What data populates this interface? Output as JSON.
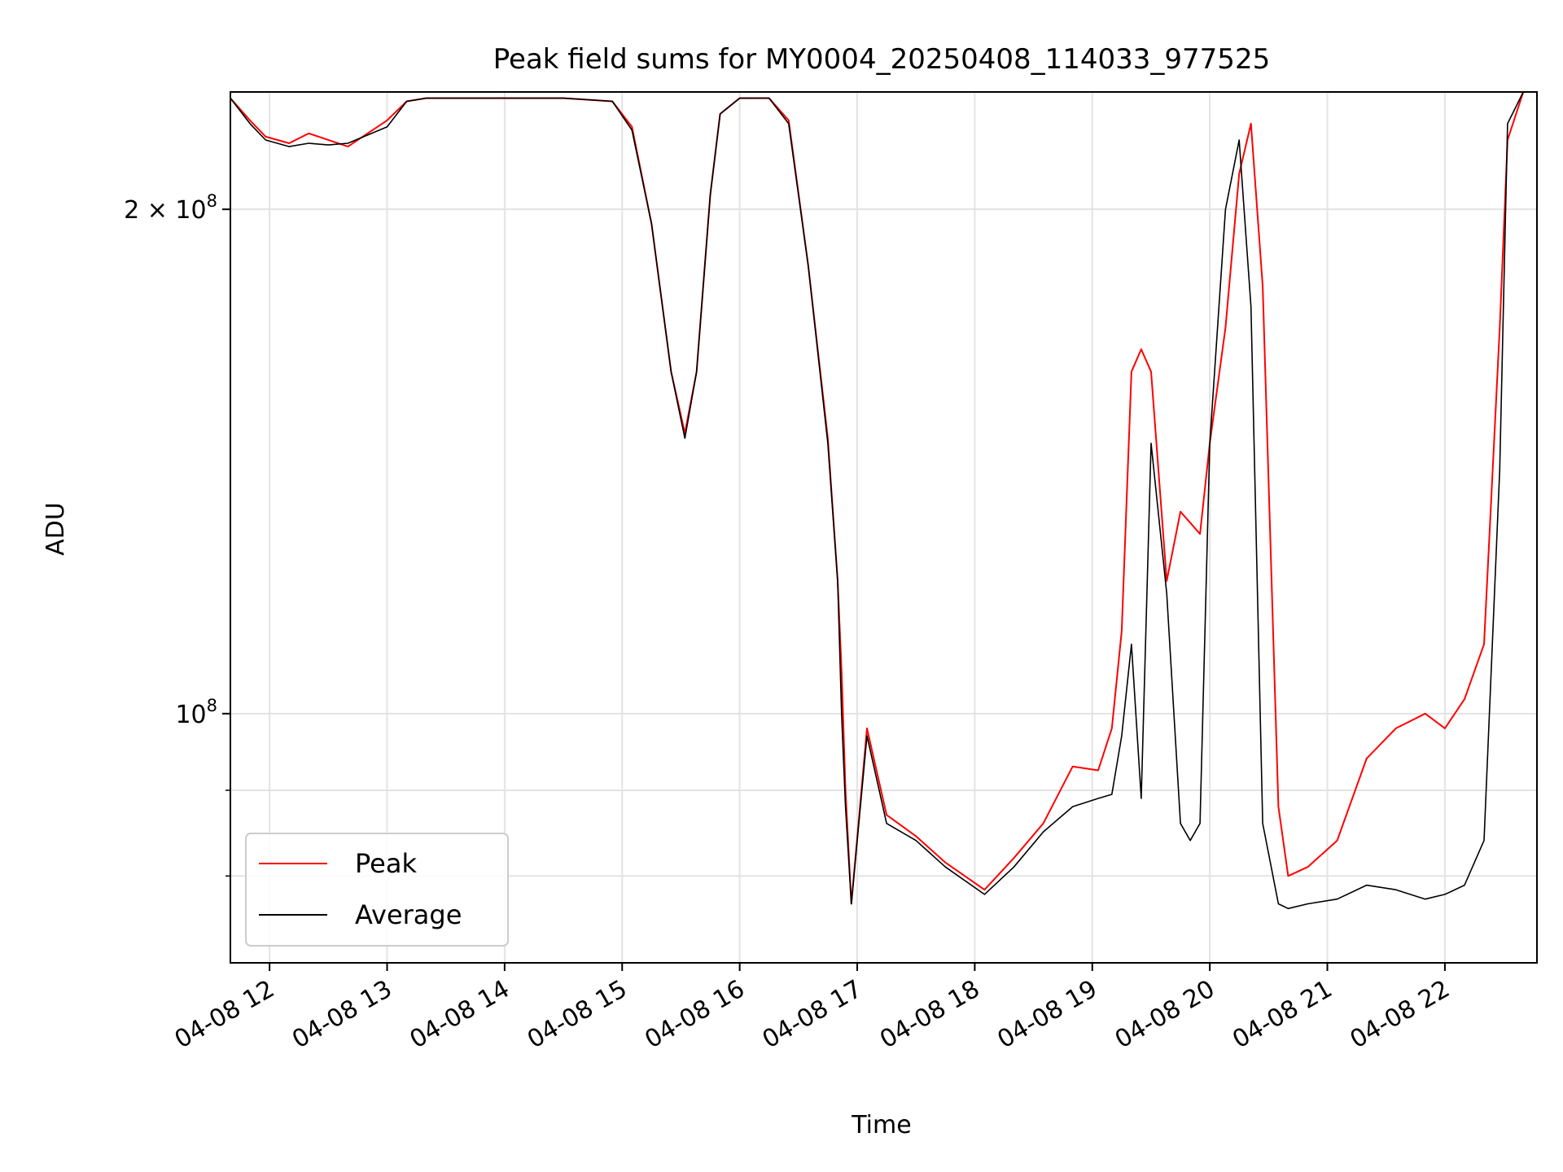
{
  "chart_data": {
    "type": "line",
    "title": "Peak field sums for MY0004_20250408_114033_977525",
    "xlabel": "Time",
    "ylabel": "ADU",
    "yscale": "log",
    "grid": true,
    "legend_position": "lower left",
    "xlim": [
      "2025-04-08 11:40",
      "2025-04-08 22:47"
    ],
    "ylim": [
      71000000,
      235000000
    ],
    "x_ticks": [
      {
        "x": "2025-04-08 12:00",
        "label": "04-08 12"
      },
      {
        "x": "2025-04-08 13:00",
        "label": "04-08 13"
      },
      {
        "x": "2025-04-08 14:00",
        "label": "04-08 14"
      },
      {
        "x": "2025-04-08 15:00",
        "label": "04-08 15"
      },
      {
        "x": "2025-04-08 16:00",
        "label": "04-08 16"
      },
      {
        "x": "2025-04-08 17:00",
        "label": "04-08 17"
      },
      {
        "x": "2025-04-08 18:00",
        "label": "04-08 18"
      },
      {
        "x": "2025-04-08 19:00",
        "label": "04-08 19"
      },
      {
        "x": "2025-04-08 20:00",
        "label": "04-08 20"
      },
      {
        "x": "2025-04-08 21:00",
        "label": "04-08 21"
      },
      {
        "x": "2025-04-08 22:00",
        "label": "04-08 22"
      }
    ],
    "y_major_ticks": [
      {
        "y": 100000000,
        "base": "10",
        "exp": "8",
        "mantissa": ""
      },
      {
        "y": 200000000,
        "base": "10",
        "exp": "8",
        "mantissa": "2 × "
      }
    ],
    "y_minor_ticks": [
      80000000,
      90000000
    ],
    "series": [
      {
        "name": "Peak",
        "color": "#ff0000",
        "x": [
          "2025-04-08 11:40",
          "2025-04-08 11:50",
          "2025-04-08 11:58",
          "2025-04-08 12:10",
          "2025-04-08 12:20",
          "2025-04-08 12:40",
          "2025-04-08 13:00",
          "2025-04-08 13:10",
          "2025-04-08 13:20",
          "2025-04-08 13:40",
          "2025-04-08 14:00",
          "2025-04-08 14:30",
          "2025-04-08 14:55",
          "2025-04-08 15:05",
          "2025-04-08 15:15",
          "2025-04-08 15:25",
          "2025-04-08 15:32",
          "2025-04-08 15:38",
          "2025-04-08 15:45",
          "2025-04-08 15:50",
          "2025-04-08 16:00",
          "2025-04-08 16:15",
          "2025-04-08 16:25",
          "2025-04-08 16:35",
          "2025-04-08 16:45",
          "2025-04-08 16:50",
          "2025-04-08 16:52",
          "2025-04-08 16:54",
          "2025-04-08 16:57",
          "2025-04-08 17:05",
          "2025-04-08 17:15",
          "2025-04-08 17:30",
          "2025-04-08 17:45",
          "2025-04-08 18:05",
          "2025-04-08 18:20",
          "2025-04-08 18:35",
          "2025-04-08 18:50",
          "2025-04-08 19:03",
          "2025-04-08 19:10",
          "2025-04-08 19:15",
          "2025-04-08 19:20",
          "2025-04-08 19:25",
          "2025-04-08 19:30",
          "2025-04-08 19:38",
          "2025-04-08 19:45",
          "2025-04-08 19:50",
          "2025-04-08 19:55",
          "2025-04-08 20:00",
          "2025-04-08 20:08",
          "2025-04-08 20:15",
          "2025-04-08 20:21",
          "2025-04-08 20:27",
          "2025-04-08 20:35",
          "2025-04-08 20:40",
          "2025-04-08 20:50",
          "2025-04-08 21:05",
          "2025-04-08 21:20",
          "2025-04-08 21:35",
          "2025-04-08 21:50",
          "2025-04-08 22:00",
          "2025-04-08 22:10",
          "2025-04-08 22:20",
          "2025-04-08 22:28",
          "2025-04-08 22:32",
          "2025-04-08 22:40"
        ],
        "y": [
          233000000,
          226000000,
          221000000,
          219000000,
          222000000,
          218000000,
          226000000,
          232000000,
          233000000,
          233000000,
          233000000,
          233000000,
          232000000,
          224000000,
          196000000,
          160000000,
          147000000,
          160000000,
          204000000,
          228000000,
          233000000,
          233000000,
          226000000,
          185000000,
          146000000,
          120000000,
          106000000,
          90000000,
          77000000,
          98000000,
          87000000,
          84500000,
          81500000,
          78500000,
          82000000,
          86000000,
          93000000,
          92500000,
          98000000,
          112000000,
          160000000,
          165000000,
          160000000,
          120000000,
          132000000,
          130000000,
          128000000,
          145000000,
          170000000,
          210000000,
          225000000,
          180000000,
          88000000,
          80000000,
          81000000,
          84000000,
          94000000,
          98000000,
          100000000,
          98000000,
          102000000,
          110000000,
          170000000,
          220000000,
          235000000
        ]
      },
      {
        "name": "Average",
        "color": "#000000",
        "x": [
          "2025-04-08 11:40",
          "2025-04-08 11:50",
          "2025-04-08 11:58",
          "2025-04-08 12:10",
          "2025-04-08 12:20",
          "2025-04-08 12:30",
          "2025-04-08 12:40",
          "2025-04-08 13:00",
          "2025-04-08 13:10",
          "2025-04-08 13:20",
          "2025-04-08 13:40",
          "2025-04-08 14:00",
          "2025-04-08 14:30",
          "2025-04-08 14:55",
          "2025-04-08 15:05",
          "2025-04-08 15:15",
          "2025-04-08 15:25",
          "2025-04-08 15:32",
          "2025-04-08 15:38",
          "2025-04-08 15:45",
          "2025-04-08 15:50",
          "2025-04-08 16:00",
          "2025-04-08 16:15",
          "2025-04-08 16:25",
          "2025-04-08 16:35",
          "2025-04-08 16:45",
          "2025-04-08 16:50",
          "2025-04-08 16:52",
          "2025-04-08 16:54",
          "2025-04-08 16:57",
          "2025-04-08 17:05",
          "2025-04-08 17:15",
          "2025-04-08 17:30",
          "2025-04-08 17:45",
          "2025-04-08 18:05",
          "2025-04-08 18:20",
          "2025-04-08 18:35",
          "2025-04-08 18:50",
          "2025-04-08 19:03",
          "2025-04-08 19:10",
          "2025-04-08 19:15",
          "2025-04-08 19:20",
          "2025-04-08 19:25",
          "2025-04-08 19:30",
          "2025-04-08 19:38",
          "2025-04-08 19:45",
          "2025-04-08 19:50",
          "2025-04-08 19:55",
          "2025-04-08 20:00",
          "2025-04-08 20:08",
          "2025-04-08 20:15",
          "2025-04-08 20:21",
          "2025-04-08 20:27",
          "2025-04-08 20:35",
          "2025-04-08 20:40",
          "2025-04-08 20:50",
          "2025-04-08 21:05",
          "2025-04-08 21:20",
          "2025-04-08 21:35",
          "2025-04-08 21:50",
          "2025-04-08 22:00",
          "2025-04-08 22:10",
          "2025-04-08 22:20",
          "2025-04-08 22:28",
          "2025-04-08 22:32",
          "2025-04-08 22:40"
        ],
        "y": [
          233000000,
          225000000,
          220000000,
          218000000,
          219000000,
          218500000,
          219000000,
          224000000,
          232000000,
          233000000,
          233000000,
          233000000,
          233000000,
          232000000,
          223000000,
          196000000,
          160000000,
          146000000,
          160000000,
          204000000,
          228000000,
          233000000,
          233000000,
          225000000,
          185000000,
          145000000,
          120000000,
          100000000,
          88000000,
          77000000,
          97000000,
          86000000,
          84000000,
          81000000,
          78000000,
          81000000,
          85000000,
          88000000,
          89000000,
          89500000,
          97000000,
          110000000,
          89000000,
          145000000,
          118000000,
          86000000,
          84000000,
          86000000,
          145000000,
          200000000,
          220000000,
          175000000,
          86000000,
          77000000,
          76500000,
          77000000,
          77500000,
          79000000,
          78500000,
          77500000,
          78000000,
          79000000,
          84000000,
          140000000,
          225000000,
          235000000
        ]
      }
    ]
  }
}
